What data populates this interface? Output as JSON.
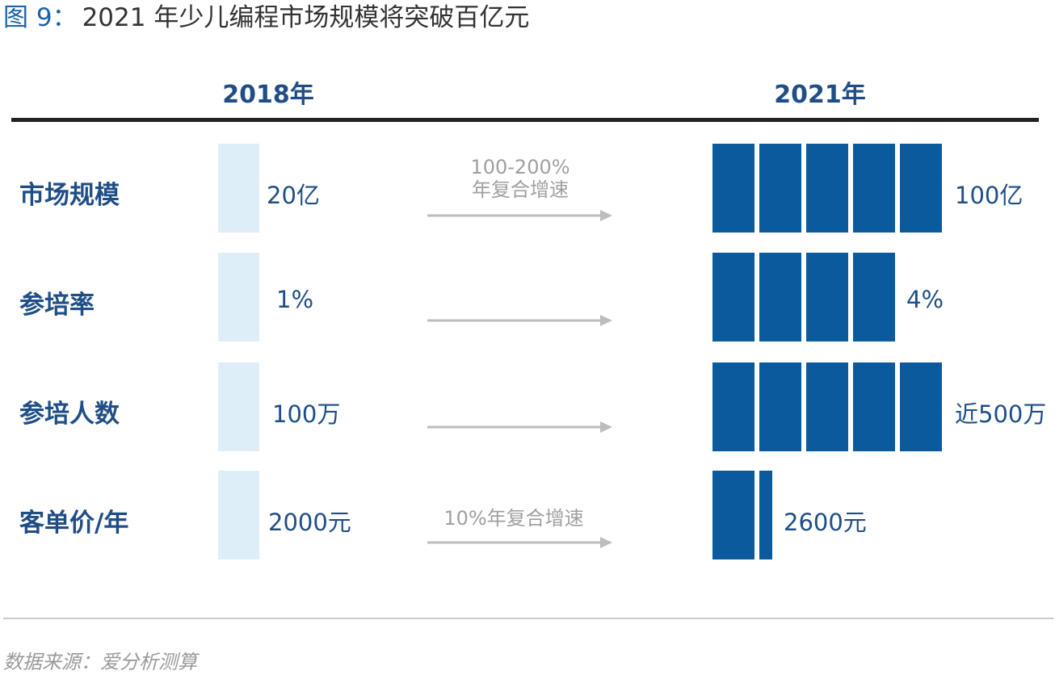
{
  "title": {
    "prefix": "图 9",
    "colon": "：",
    "text": "2021 年少儿编程市场规模将突破百亿元"
  },
  "chart_data": {
    "type": "table",
    "columns": [
      "2018年",
      "2021年"
    ],
    "rows": [
      {
        "label": "市场规模",
        "value_2018": "20亿",
        "value_2021": "100亿",
        "blocks_2021": 5,
        "growth_note": [
          "100-200%",
          "年复合增速"
        ]
      },
      {
        "label": "参培率",
        "value_2018": "1%",
        "value_2021": "4%",
        "blocks_2021": 4,
        "growth_note": []
      },
      {
        "label": "参培人数",
        "value_2018": "100万",
        "value_2021": "近500万",
        "blocks_2021": 5,
        "growth_note": []
      },
      {
        "label": "客单价/年",
        "value_2018": "2000元",
        "value_2021": "2600元",
        "blocks_2021": 1.3,
        "growth_note": [
          "10%年复合增速"
        ]
      }
    ]
  },
  "colors": {
    "accent": "#1b64a8",
    "block": "#0b5a9e",
    "base_bar": "#deeef8",
    "arrow": "#bdbdbd",
    "note": "#a0a0a0"
  },
  "source": "数据来源：爱分析测算"
}
